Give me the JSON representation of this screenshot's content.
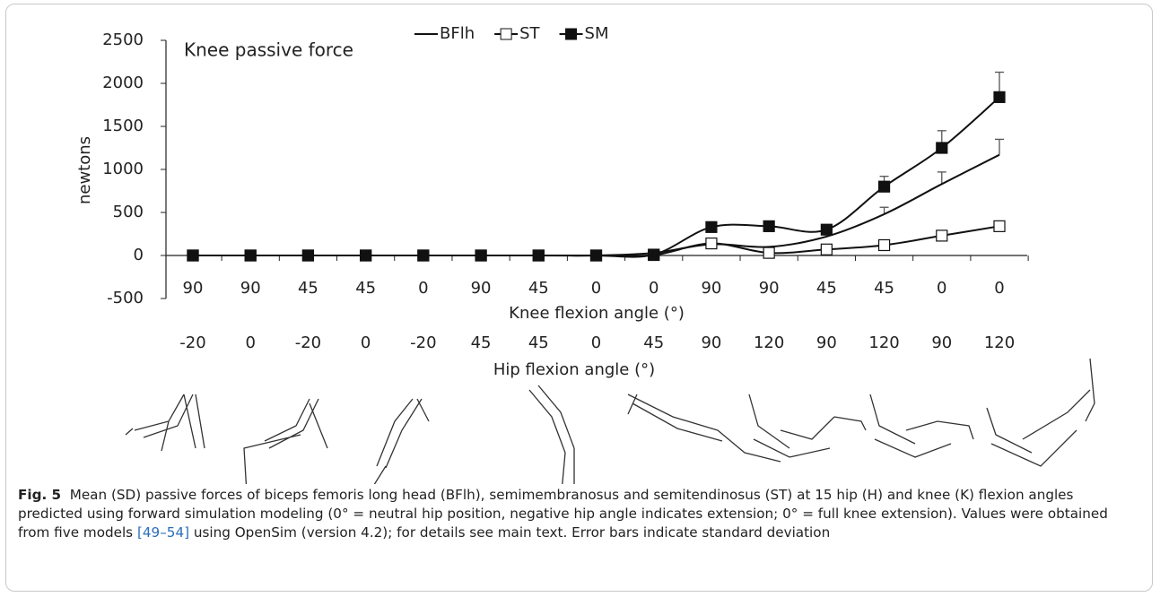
{
  "chart_data": {
    "type": "line",
    "annotation": "Knee passive force",
    "y_label": "newtons",
    "categories": [
      "90",
      "90",
      "45",
      "45",
      "0",
      "90",
      "45",
      "0",
      "0",
      "90",
      "90",
      "45",
      "45",
      "0",
      "0"
    ],
    "x_label": "Knee flexion angle (°)",
    "hip_categories": [
      "-20",
      "0",
      "-20",
      "0",
      "-20",
      "45",
      "45",
      "0",
      "45",
      "90",
      "120",
      "90",
      "120",
      "90",
      "120"
    ],
    "hip_label": "Hip flexion angle (°)",
    "ylim": [
      -500,
      2500
    ],
    "yticks": [
      -500,
      0,
      500,
      1000,
      1500,
      2000,
      2500
    ],
    "series": [
      {
        "name": "BFlh",
        "color": "#111111",
        "marker": "none",
        "values": [
          0,
          0,
          0,
          0,
          0,
          0,
          0,
          0,
          30,
          130,
          100,
          220,
          480,
          830,
          1170
        ],
        "errors": [
          null,
          null,
          null,
          null,
          null,
          null,
          null,
          null,
          null,
          null,
          null,
          null,
          80,
          140,
          180
        ]
      },
      {
        "name": "ST",
        "color": "#111111",
        "marker": "open-square",
        "values": [
          0,
          0,
          0,
          0,
          0,
          0,
          0,
          0,
          5,
          140,
          30,
          70,
          120,
          230,
          340
        ],
        "errors": [
          null,
          null,
          null,
          null,
          null,
          null,
          null,
          null,
          null,
          null,
          null,
          null,
          null,
          null,
          null
        ]
      },
      {
        "name": "SM",
        "color": "#111111",
        "marker": "filled-square",
        "values": [
          0,
          0,
          0,
          0,
          0,
          0,
          0,
          0,
          10,
          330,
          340,
          300,
          800,
          1250,
          1840
        ],
        "errors": [
          null,
          null,
          null,
          null,
          null,
          null,
          null,
          null,
          null,
          null,
          null,
          null,
          120,
          200,
          290
        ]
      }
    ]
  },
  "caption": {
    "label": "Fig. 5",
    "text_1": "Mean (SD) passive forces of biceps femoris long head (BFlh), semimembranosus and semitendinosus (ST) at 15 hip (H) and knee (K) flexion angles predicted using forward simulation modeling (0° = neutral hip position, negative hip angle indicates extension; 0° = full knee extension). Values were obtained from five models ",
    "ref": "[49–54]",
    "text_2": " using OpenSim (version 4.2); for details see main text. Error bars indicate standard deviation"
  }
}
